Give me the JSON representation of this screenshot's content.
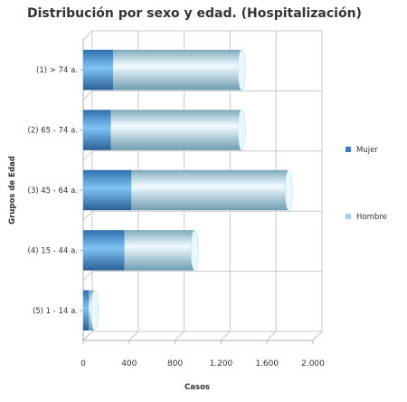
{
  "chart_data": {
    "type": "bar",
    "orientation": "horizontal",
    "stacked": true,
    "style": "3d-cylinder",
    "title": "Distribución por sexo y edad. (Hospitalización)",
    "xlabel": "Casos",
    "ylabel": "Grupos de Edad",
    "xlim": [
      0,
      2000
    ],
    "xticks": [
      0,
      400,
      800,
      1200,
      1600,
      2000
    ],
    "xtick_labels": [
      "0",
      "400",
      "800",
      "1.200",
      "1.600",
      "2.000"
    ],
    "grid": true,
    "legend_position": "right",
    "categories": [
      "(1) > 74 a.",
      "(2) 65 - 74 a.",
      "(3) 45 - 64 a.",
      "(4) 15 - 44 a.",
      "(5) 1 - 14 a."
    ],
    "series": [
      {
        "name": "Mujer",
        "values": [
          260,
          240,
          420,
          360,
          50
        ],
        "color": "#3a7fc1"
      },
      {
        "name": "Hombre",
        "values": [
          1120,
          1140,
          1370,
          610,
          50
        ],
        "color": "#9fd3f2"
      }
    ]
  }
}
